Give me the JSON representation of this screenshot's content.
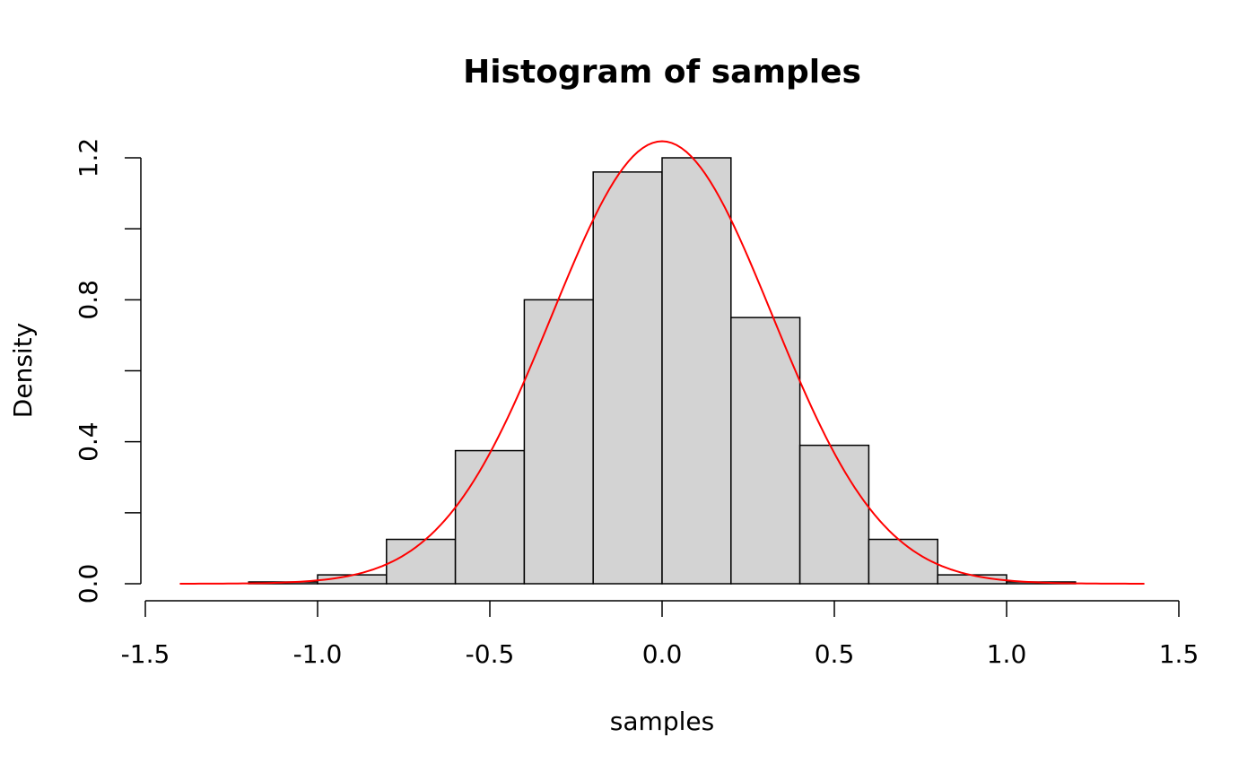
{
  "chart_data": {
    "type": "bar",
    "title": "Histogram of samples",
    "xlabel": "samples",
    "ylabel": "Density",
    "xlim": [
      -1.5,
      1.5
    ],
    "ylim": [
      0,
      1.2
    ],
    "x_ticks": [
      "-1.5",
      "-1.0",
      "-0.5",
      "0.0",
      "0.5",
      "1.0",
      "1.5"
    ],
    "y_ticks": [
      "0.0",
      "0.4",
      "0.8",
      "1.2"
    ],
    "grid": false,
    "bins": [
      {
        "start": -1.2,
        "end": -1.0,
        "density": 0.005
      },
      {
        "start": -1.0,
        "end": -0.8,
        "density": 0.025
      },
      {
        "start": -0.8,
        "end": -0.6,
        "density": 0.125
      },
      {
        "start": -0.6,
        "end": -0.4,
        "density": 0.375
      },
      {
        "start": -0.4,
        "end": -0.2,
        "density": 0.8
      },
      {
        "start": -0.2,
        "end": 0.0,
        "density": 1.16
      },
      {
        "start": 0.0,
        "end": 0.2,
        "density": 1.2
      },
      {
        "start": 0.2,
        "end": 0.4,
        "density": 0.75
      },
      {
        "start": 0.4,
        "end": 0.6,
        "density": 0.39
      },
      {
        "start": 0.6,
        "end": 0.8,
        "density": 0.125
      },
      {
        "start": 0.8,
        "end": 1.0,
        "density": 0.025
      },
      {
        "start": 1.0,
        "end": 1.2,
        "density": 0.005
      }
    ],
    "curve": {
      "type": "normal_density",
      "mean": 0.0,
      "sd": 0.32,
      "x_range": [
        -1.4,
        1.4
      ]
    },
    "colors": {
      "bar_fill": "#d3d3d3",
      "bar_stroke": "#000000",
      "curve": "#ff0000"
    }
  }
}
